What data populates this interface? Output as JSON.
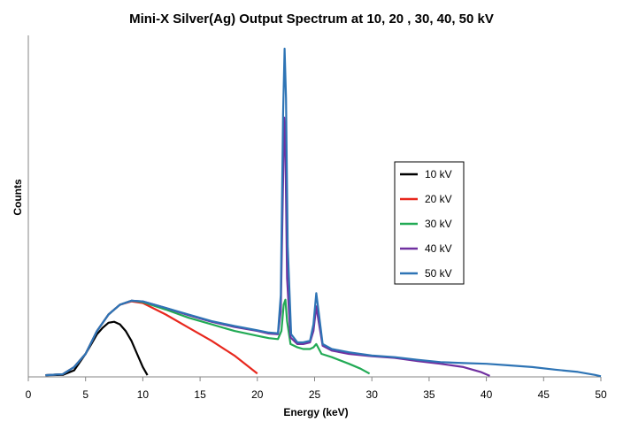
{
  "chart_data": {
    "type": "line",
    "title": "Mini-X Silver(Ag) Output Spectrum at 10, 20 , 30, 40, 50 kV",
    "xlabel": "Energy (keV)",
    "ylabel": "Counts",
    "xlim": [
      0,
      50
    ],
    "ylim": [
      0,
      1
    ],
    "x_ticks": [
      "0",
      "5",
      "10",
      "15",
      "20",
      "25",
      "30",
      "35",
      "40",
      "45",
      "50"
    ],
    "y_ticks_shown": false,
    "grid": false,
    "legend_position": "right-center",
    "series": [
      {
        "name": "10 kV",
        "color": "#000000",
        "points": [
          [
            1.5,
            0.005
          ],
          [
            3,
            0.006
          ],
          [
            4,
            0.02
          ],
          [
            5,
            0.07
          ],
          [
            5.5,
            0.1
          ],
          [
            6,
            0.13
          ],
          [
            6.5,
            0.15
          ],
          [
            7,
            0.165
          ],
          [
            7.5,
            0.168
          ],
          [
            8,
            0.16
          ],
          [
            8.5,
            0.14
          ],
          [
            9,
            0.11
          ],
          [
            9.5,
            0.07
          ],
          [
            10,
            0.03
          ],
          [
            10.4,
            0.005
          ]
        ]
      },
      {
        "name": "20 kV",
        "color": "#e8281e",
        "points": [
          [
            1.5,
            0.005
          ],
          [
            3,
            0.008
          ],
          [
            4,
            0.03
          ],
          [
            5,
            0.07
          ],
          [
            6,
            0.14
          ],
          [
            7,
            0.19
          ],
          [
            8,
            0.22
          ],
          [
            9,
            0.23
          ],
          [
            10,
            0.225
          ],
          [
            12,
            0.19
          ],
          [
            14,
            0.15
          ],
          [
            16,
            0.11
          ],
          [
            18,
            0.065
          ],
          [
            20,
            0.01
          ]
        ]
      },
      {
        "name": "30 kV",
        "color": "#22aa55",
        "points": [
          [
            1.5,
            0.005
          ],
          [
            3,
            0.008
          ],
          [
            4,
            0.03
          ],
          [
            5,
            0.07
          ],
          [
            6,
            0.14
          ],
          [
            7,
            0.19
          ],
          [
            8,
            0.22
          ],
          [
            9,
            0.232
          ],
          [
            10,
            0.228
          ],
          [
            12,
            0.205
          ],
          [
            14,
            0.18
          ],
          [
            16,
            0.16
          ],
          [
            18,
            0.14
          ],
          [
            20,
            0.125
          ],
          [
            21,
            0.118
          ],
          [
            21.8,
            0.115
          ],
          [
            22.1,
            0.14
          ],
          [
            22.3,
            0.22
          ],
          [
            22.45,
            0.235
          ],
          [
            22.6,
            0.17
          ],
          [
            22.9,
            0.1
          ],
          [
            23.5,
            0.09
          ],
          [
            24,
            0.085
          ],
          [
            24.6,
            0.085
          ],
          [
            24.9,
            0.09
          ],
          [
            25.15,
            0.1
          ],
          [
            25.3,
            0.09
          ],
          [
            25.6,
            0.07
          ],
          [
            26.5,
            0.06
          ],
          [
            28,
            0.04
          ],
          [
            29,
            0.025
          ],
          [
            29.8,
            0.01
          ]
        ]
      },
      {
        "name": "40 kV",
        "color": "#7030a0",
        "points": [
          [
            1.5,
            0.005
          ],
          [
            3,
            0.008
          ],
          [
            4,
            0.03
          ],
          [
            5,
            0.07
          ],
          [
            6,
            0.14
          ],
          [
            7,
            0.19
          ],
          [
            8,
            0.22
          ],
          [
            9,
            0.232
          ],
          [
            10,
            0.23
          ],
          [
            12,
            0.21
          ],
          [
            14,
            0.188
          ],
          [
            16,
            0.168
          ],
          [
            18,
            0.152
          ],
          [
            20,
            0.14
          ],
          [
            21,
            0.132
          ],
          [
            21.8,
            0.13
          ],
          [
            22.05,
            0.2
          ],
          [
            22.25,
            0.6
          ],
          [
            22.35,
            0.79
          ],
          [
            22.45,
            0.7
          ],
          [
            22.6,
            0.3
          ],
          [
            22.9,
            0.12
          ],
          [
            23.5,
            0.1
          ],
          [
            24,
            0.1
          ],
          [
            24.6,
            0.105
          ],
          [
            24.9,
            0.14
          ],
          [
            25.15,
            0.215
          ],
          [
            25.35,
            0.17
          ],
          [
            25.7,
            0.095
          ],
          [
            26.5,
            0.08
          ],
          [
            28,
            0.07
          ],
          [
            30,
            0.063
          ],
          [
            32,
            0.058
          ],
          [
            34,
            0.048
          ],
          [
            36,
            0.04
          ],
          [
            38,
            0.03
          ],
          [
            39.5,
            0.015
          ],
          [
            40.3,
            0.003
          ]
        ]
      },
      {
        "name": "50 kV",
        "color": "#2e74b5",
        "points": [
          [
            1.5,
            0.005
          ],
          [
            3,
            0.008
          ],
          [
            4,
            0.03
          ],
          [
            5,
            0.07
          ],
          [
            6,
            0.14
          ],
          [
            7,
            0.19
          ],
          [
            8,
            0.22
          ],
          [
            9,
            0.232
          ],
          [
            10,
            0.23
          ],
          [
            12,
            0.21
          ],
          [
            14,
            0.19
          ],
          [
            16,
            0.17
          ],
          [
            18,
            0.155
          ],
          [
            20,
            0.142
          ],
          [
            21,
            0.135
          ],
          [
            21.8,
            0.133
          ],
          [
            22.05,
            0.25
          ],
          [
            22.25,
            0.8
          ],
          [
            22.38,
            1.0
          ],
          [
            22.5,
            0.85
          ],
          [
            22.65,
            0.4
          ],
          [
            22.95,
            0.13
          ],
          [
            23.5,
            0.105
          ],
          [
            24,
            0.105
          ],
          [
            24.6,
            0.11
          ],
          [
            24.9,
            0.16
          ],
          [
            25.15,
            0.255
          ],
          [
            25.35,
            0.2
          ],
          [
            25.7,
            0.1
          ],
          [
            26.5,
            0.085
          ],
          [
            28,
            0.075
          ],
          [
            30,
            0.065
          ],
          [
            32,
            0.06
          ],
          [
            34,
            0.052
          ],
          [
            36,
            0.045
          ],
          [
            38,
            0.042
          ],
          [
            40,
            0.04
          ],
          [
            42,
            0.035
          ],
          [
            44,
            0.03
          ],
          [
            46,
            0.022
          ],
          [
            48,
            0.015
          ],
          [
            49.5,
            0.006
          ],
          [
            50,
            0.002
          ]
        ]
      }
    ]
  }
}
